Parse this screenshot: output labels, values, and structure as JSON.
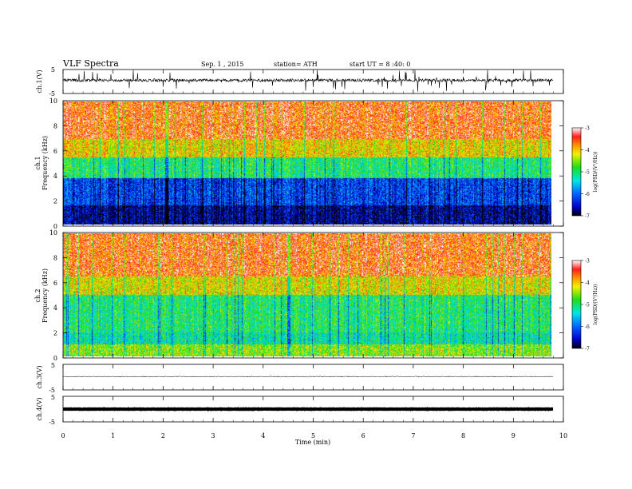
{
  "header": {
    "title": "VLF Spectra",
    "date": "Sep. 1 , 2015",
    "station": "station= ATH",
    "start": "start  UT =  8 :40: 0"
  },
  "chart_data": [
    {
      "type": "line",
      "panel": "ch1-waveform",
      "ylabel": "ch.1(V)",
      "ylim": [
        -5,
        5
      ],
      "yticks": [
        "5",
        "-5"
      ],
      "x_range_min": [
        0,
        9.8
      ],
      "baseline_v": 0.5
    },
    {
      "type": "heatmap",
      "panel": "ch1-spectrogram",
      "ylabel_outer": "ch.1",
      "ylabel": "Frequency  (kHz)",
      "ylim": [
        0,
        10
      ],
      "yticks": [
        "0",
        "2",
        "4",
        "6",
        "8",
        "10"
      ],
      "colorbar": {
        "label": "log(PSD/(V²/Hz))",
        "range": [
          -7,
          -3
        ],
        "ticks": [
          "-3",
          "-4",
          "-5",
          "-6",
          "-7"
        ]
      },
      "x_range_min": [
        0,
        9.8
      ]
    },
    {
      "type": "heatmap",
      "panel": "ch2-spectrogram",
      "ylabel_outer": "ch.2",
      "ylabel": "Frequency  (kHz)",
      "ylim": [
        0,
        10
      ],
      "yticks": [
        "0",
        "2",
        "4",
        "6",
        "8",
        "10"
      ],
      "colorbar": {
        "label": "log(PSD/(V²/Hz))",
        "range": [
          -7,
          -3
        ],
        "ticks": [
          "-3",
          "-4",
          "-5",
          "-6",
          "-7"
        ]
      },
      "x_range_min": [
        0,
        9.8
      ]
    },
    {
      "type": "line",
      "panel": "ch3-waveform",
      "ylabel": "ch.3(V)",
      "ylim": [
        -5,
        5
      ],
      "yticks": [
        "5",
        "-5"
      ],
      "x_range_min": [
        0,
        9.8
      ],
      "baseline_v": 0.2
    },
    {
      "type": "line",
      "panel": "ch4-waveform",
      "ylabel": "ch.4(V)",
      "ylim": [
        -5,
        5
      ],
      "yticks": [
        "5",
        "-5"
      ],
      "x_range_min": [
        0,
        9.8
      ],
      "baseline_v": 0
    }
  ],
  "xaxis": {
    "label": "Time  (min)",
    "range": [
      0,
      10
    ],
    "ticks": [
      "0",
      "1",
      "2",
      "3",
      "4",
      "5",
      "6",
      "7",
      "8",
      "9",
      "10"
    ]
  }
}
